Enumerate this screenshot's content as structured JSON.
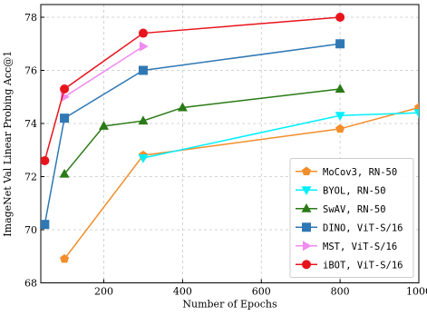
{
  "chart_data": {
    "type": "line",
    "title": "",
    "xlabel": "Number of Epochs",
    "ylabel": "ImageNet Val Linear Probing Acc@1",
    "xlim": [
      40,
      1000
    ],
    "ylim": [
      68,
      78.6
    ],
    "xticks": [
      200,
      400,
      600,
      800,
      1000
    ],
    "xtick_labels": [
      "200",
      "400",
      "600",
      "800",
      "1000"
    ],
    "yticks": [
      68,
      70,
      72,
      74,
      76,
      78
    ],
    "ytick_labels": [
      "68",
      "70",
      "72",
      "74",
      "76",
      "78"
    ],
    "grid": true,
    "legend_position": "bottom-right",
    "series": [
      {
        "name": "MoCov3, RN-50",
        "color": "#f28e2b",
        "marker": "pentagon",
        "x": [
          100,
          300,
          800,
          1000
        ],
        "y": [
          68.9,
          72.8,
          73.8,
          74.6
        ]
      },
      {
        "name": "BYOL, RN-50",
        "color": "#00f0ff",
        "marker": "triangle-down",
        "x": [
          300,
          800,
          1000
        ],
        "y": [
          72.7,
          74.3,
          74.4
        ]
      },
      {
        "name": "SwAV, RN-50",
        "color": "#2a7a16",
        "marker": "triangle-up",
        "x": [
          100,
          200,
          300,
          400,
          800
        ],
        "y": [
          72.1,
          73.9,
          74.1,
          74.6,
          75.3
        ]
      },
      {
        "name": "DINO, ViT-S/16",
        "color": "#2f78b4",
        "marker": "square",
        "x": [
          50,
          100,
          300,
          800
        ],
        "y": [
          70.2,
          74.2,
          76.0,
          77.0
        ]
      },
      {
        "name": "MST, ViT-S/16",
        "color": "#f08bf0",
        "marker": "triangle-right",
        "x": [
          100,
          300
        ],
        "y": [
          75.0,
          76.9
        ]
      },
      {
        "name": "iBOT, ViT-S/16",
        "color": "#e8141c",
        "marker": "circle",
        "x": [
          50,
          100,
          300,
          800
        ],
        "y": [
          72.6,
          75.3,
          77.4,
          78.0
        ]
      }
    ]
  }
}
